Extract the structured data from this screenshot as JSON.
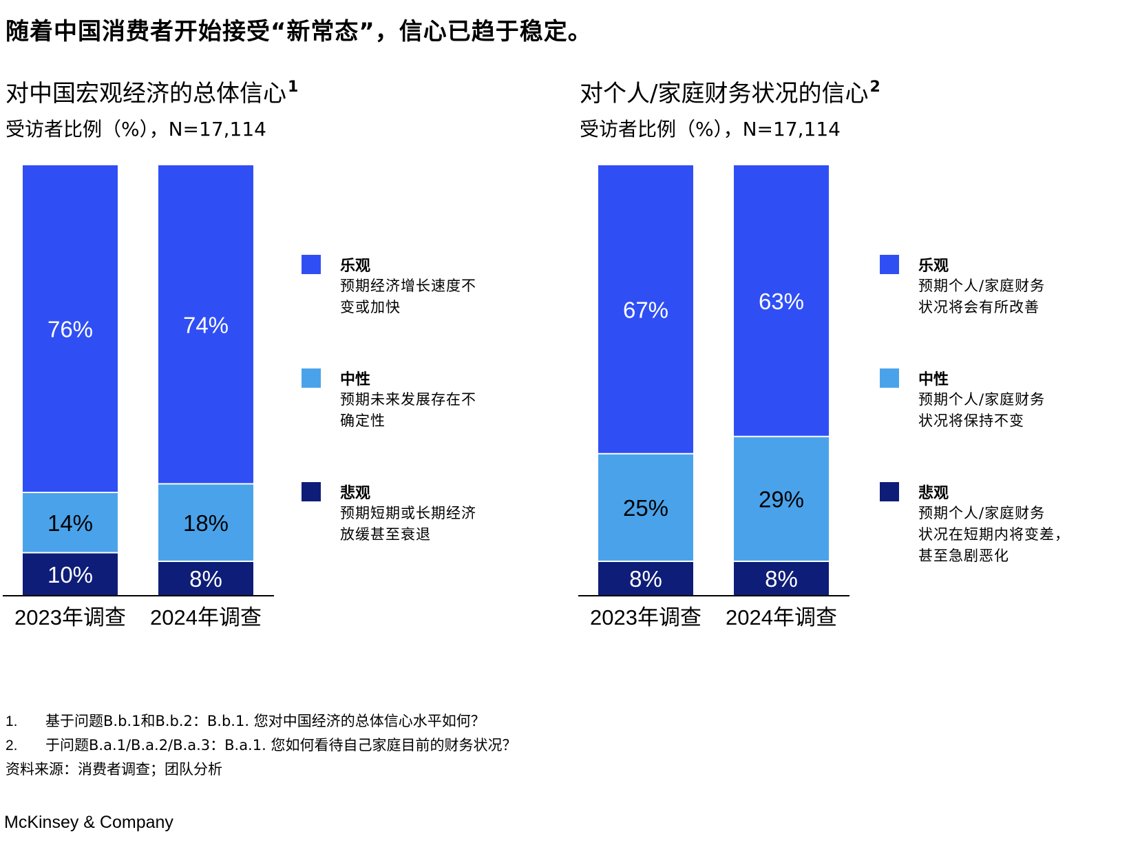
{
  "title": "随着中国消费者开始接受“新常态”，信心已趋于稳定。",
  "colors": {
    "optimistic": "#2f4ff5",
    "neutral": "#4aa3ea",
    "pessimistic": "#0e1d78",
    "axis": "#000000"
  },
  "chart_data": [
    {
      "type": "bar",
      "stacked": true,
      "title": "对中国宏观经济的总体信心",
      "title_sup": "1",
      "subtitle": "受访者比例（%），N=17,114",
      "categories": [
        "2023年调查",
        "2024年调查"
      ],
      "series": [
        {
          "name": "悲观",
          "values": [
            10,
            8
          ],
          "labels": [
            "10%",
            "8%"
          ]
        },
        {
          "name": "中性",
          "values": [
            14,
            18
          ],
          "labels": [
            "14%",
            "18%"
          ]
        },
        {
          "name": "乐观",
          "values": [
            76,
            74
          ],
          "labels": [
            "76%",
            "74%"
          ]
        }
      ],
      "ylim": [
        0,
        100
      ],
      "legend": [
        {
          "key": "optimistic",
          "name": "乐观",
          "desc": [
            "预期经济增长速度不",
            "变或加快"
          ]
        },
        {
          "key": "neutral",
          "name": "中性",
          "desc": [
            "预期未来发展存在不",
            "确定性"
          ]
        },
        {
          "key": "pessimistic",
          "name": "悲观",
          "desc": [
            "预期短期或长期经济",
            "放缓甚至衰退"
          ]
        }
      ]
    },
    {
      "type": "bar",
      "stacked": true,
      "title": "对个人/家庭财务状况的信心",
      "title_sup": "2",
      "subtitle": "受访者比例（%），N=17,114",
      "categories": [
        "2023年调查",
        "2024年调查"
      ],
      "series": [
        {
          "name": "悲观",
          "values": [
            8,
            8
          ],
          "labels": [
            "8%",
            "8%"
          ]
        },
        {
          "name": "中性",
          "values": [
            25,
            29
          ],
          "labels": [
            "25%",
            "29%"
          ]
        },
        {
          "name": "乐观",
          "values": [
            67,
            63
          ],
          "labels": [
            "67%",
            "63%"
          ]
        }
      ],
      "ylim": [
        0,
        100
      ],
      "legend": [
        {
          "key": "optimistic",
          "name": "乐观",
          "desc": [
            "预期个人/家庭财务",
            "状况将会有所改善"
          ]
        },
        {
          "key": "neutral",
          "name": "中性",
          "desc": [
            "预期个人/家庭财务",
            "状况将保持不变"
          ]
        },
        {
          "key": "pessimistic",
          "name": "悲观",
          "desc": [
            "预期个人/家庭财务",
            "状况在短期内将变差，",
            "甚至急剧恶化"
          ]
        }
      ]
    }
  ],
  "notes": [
    {
      "num": "1.",
      "text": "基于问题B.b.1和B.b.2：B.b.1. 您对中国经济的总体信心水平如何？"
    },
    {
      "num": "2.",
      "text": "于问题B.a.1/B.a.2/B.a.3：B.a.1. 您如何看待自己家庭目前的财务状况？"
    }
  ],
  "source": "资料来源：消费者调查；团队分析",
  "brand": "McKinsey & Company"
}
